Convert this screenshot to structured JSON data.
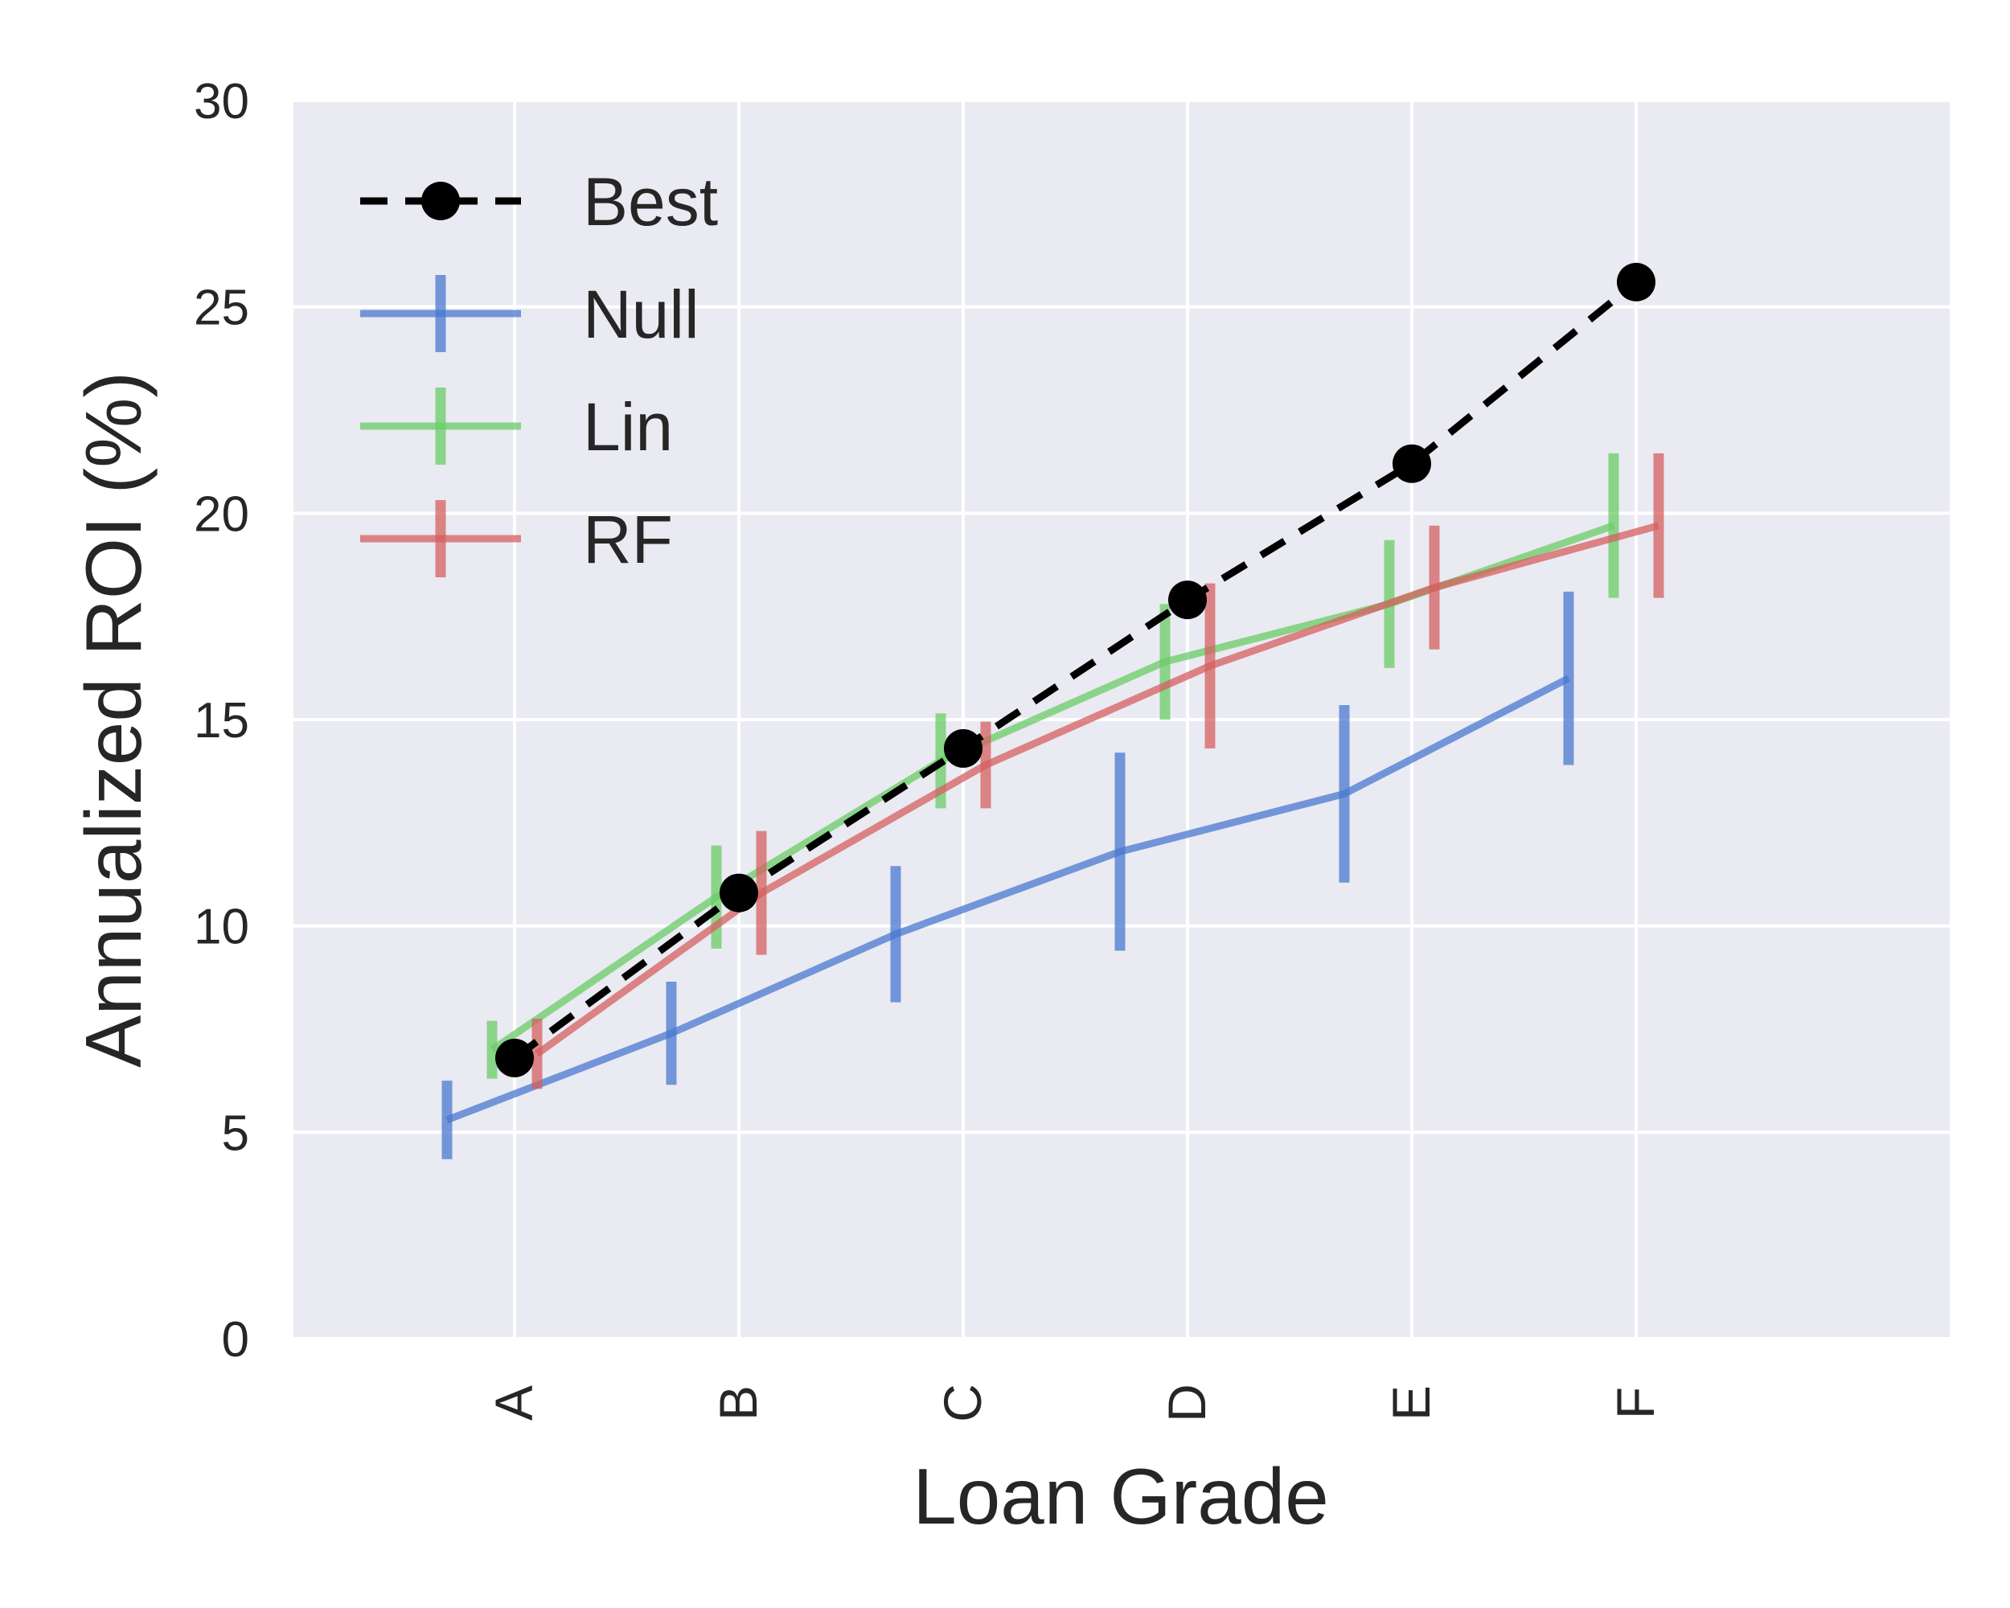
{
  "chart_data": {
    "type": "line",
    "xlabel": "Loan Grade",
    "ylabel": "Annualized ROI (%)",
    "categories": [
      "A",
      "B",
      "C",
      "D",
      "E",
      "F"
    ],
    "ylim": [
      0,
      30
    ],
    "yticks": [
      0,
      5,
      10,
      15,
      20,
      25,
      30
    ],
    "grid": true,
    "legend_position": "top-left",
    "colors": {
      "background": "#eaeaf2",
      "grid": "#ffffff",
      "best": "#000000",
      "null": "#4878cf",
      "lin": "#6acc65",
      "rf": "#d65f5f"
    },
    "series": [
      {
        "name": "Best",
        "style": "dashed-markers",
        "values": [
          6.8,
          10.8,
          14.3,
          17.9,
          21.2,
          25.6
        ]
      },
      {
        "name": "Null",
        "style": "errorbar",
        "values": [
          5.3,
          7.4,
          9.8,
          11.8,
          13.2,
          16.0
        ],
        "errors": [
          0.95,
          1.25,
          1.65,
          2.4,
          2.15,
          2.1
        ]
      },
      {
        "name": "Lin",
        "style": "errorbar",
        "values": [
          7.0,
          10.7,
          14.0,
          16.4,
          17.8,
          19.7
        ],
        "errors": [
          0.7,
          1.25,
          1.15,
          1.4,
          1.55,
          1.75
        ]
      },
      {
        "name": "RF",
        "style": "errorbar",
        "values": [
          6.9,
          10.8,
          13.9,
          16.3,
          18.2,
          19.7
        ],
        "errors": [
          0.85,
          1.5,
          1.05,
          2.0,
          1.5,
          1.75
        ]
      }
    ]
  }
}
